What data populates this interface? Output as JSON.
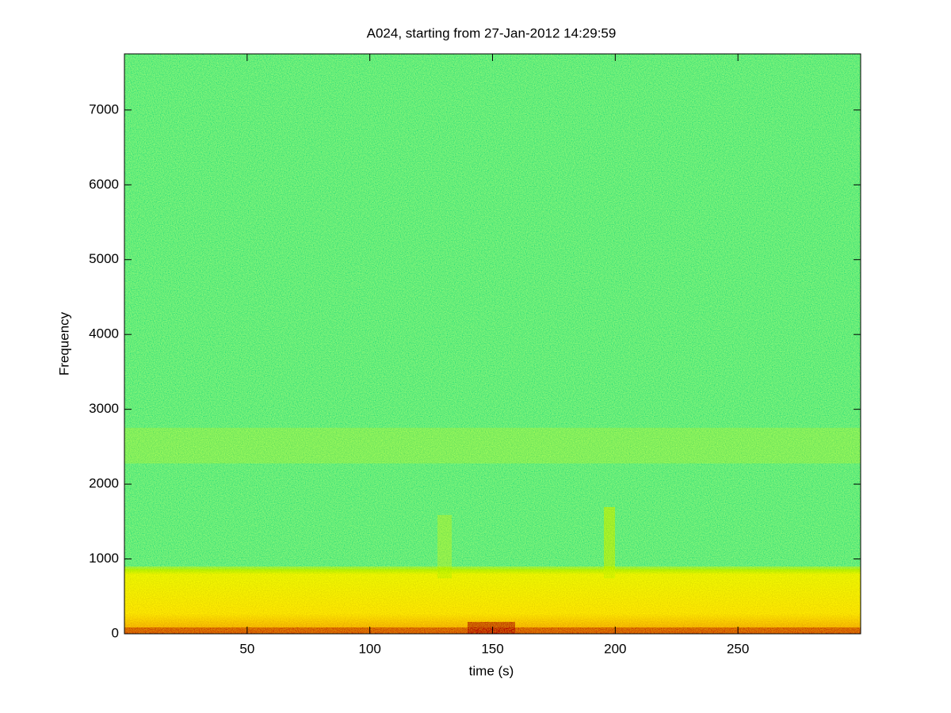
{
  "chart_data": {
    "type": "spectrogram",
    "title": "A024, starting from 27-Jan-2012 14:29:59",
    "xlabel": "time (s)",
    "ylabel": "Frequency",
    "xlim": [
      0,
      300
    ],
    "xticks": [
      50,
      100,
      150,
      200,
      250
    ],
    "ylim": [
      0,
      7750
    ],
    "yticks": [
      0,
      1000,
      2000,
      3000,
      4000,
      5000,
      6000,
      7000
    ]
  }
}
